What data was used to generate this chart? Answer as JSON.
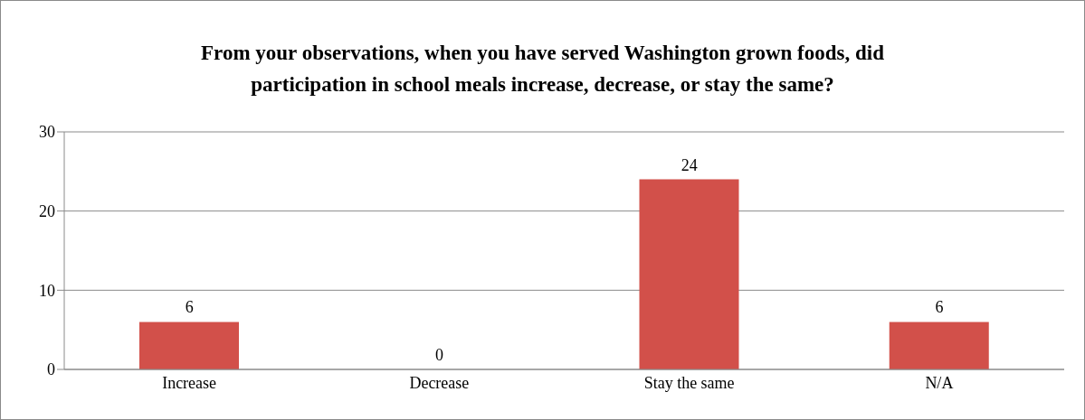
{
  "chart_data": {
    "type": "bar",
    "title": "From your observations, when you have served Washington grown foods, did participation in school meals increase, decrease, or stay the same?",
    "categories": [
      "Increase",
      "Decrease",
      "Stay the same",
      "N/A"
    ],
    "values": [
      6,
      0,
      24,
      6
    ],
    "color": "#d2504a",
    "ylim": [
      0,
      30
    ],
    "yticks": [
      0,
      10,
      20,
      30
    ],
    "grid": "y",
    "data_labels": true
  }
}
